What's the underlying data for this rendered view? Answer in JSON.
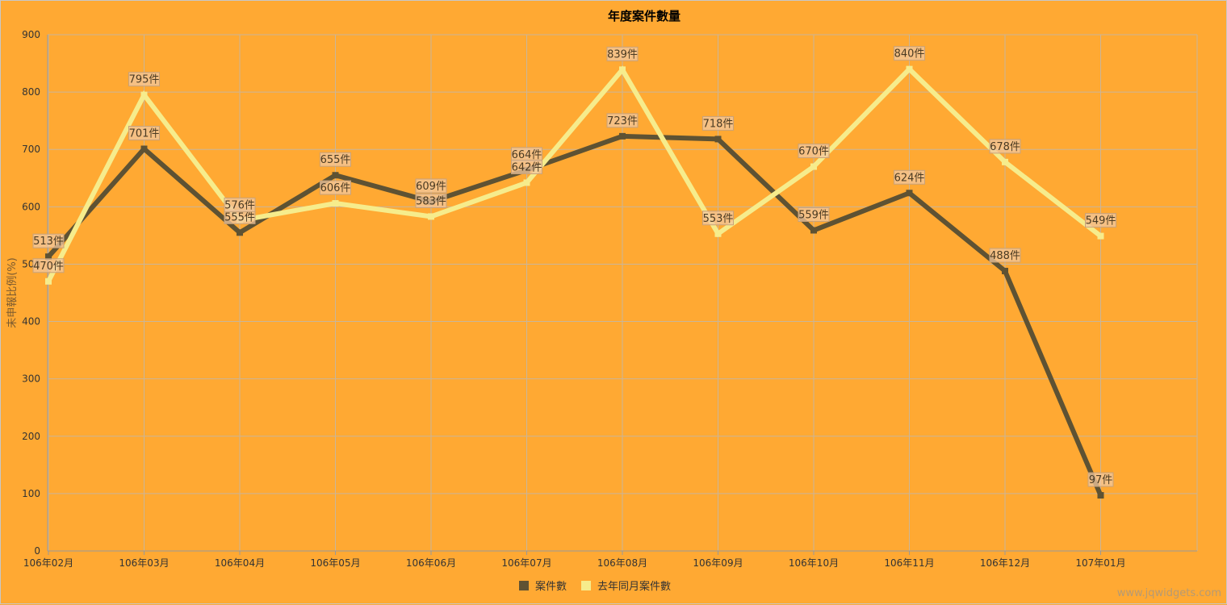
{
  "chart_data": {
    "type": "line",
    "title": "年度案件數量",
    "ylabel": "未申報比例(%)",
    "xlabel": "",
    "categories": [
      "106年02月",
      "106年03月",
      "106年04月",
      "106年05月",
      "106年06月",
      "106年07月",
      "106年08月",
      "106年09月",
      "106年10月",
      "106年11月",
      "106年12月",
      "107年01月"
    ],
    "ylim": [
      0,
      900
    ],
    "yticks": [
      0,
      100,
      200,
      300,
      400,
      500,
      600,
      700,
      800,
      900
    ],
    "grid": true,
    "legend_position": "bottom",
    "label_suffix": "件",
    "series": [
      {
        "name": "案件數",
        "color": "#5E5233",
        "values": [
          513,
          701,
          555,
          655,
          609,
          664,
          723,
          718,
          559,
          624,
          488,
          97
        ]
      },
      {
        "name": "去年同月案件數",
        "color": "#F6EC8C",
        "values": [
          470,
          795,
          576,
          606,
          583,
          642,
          839,
          553,
          670,
          840,
          678,
          549
        ]
      }
    ]
  },
  "watermark": "www.jqwidgets.com"
}
